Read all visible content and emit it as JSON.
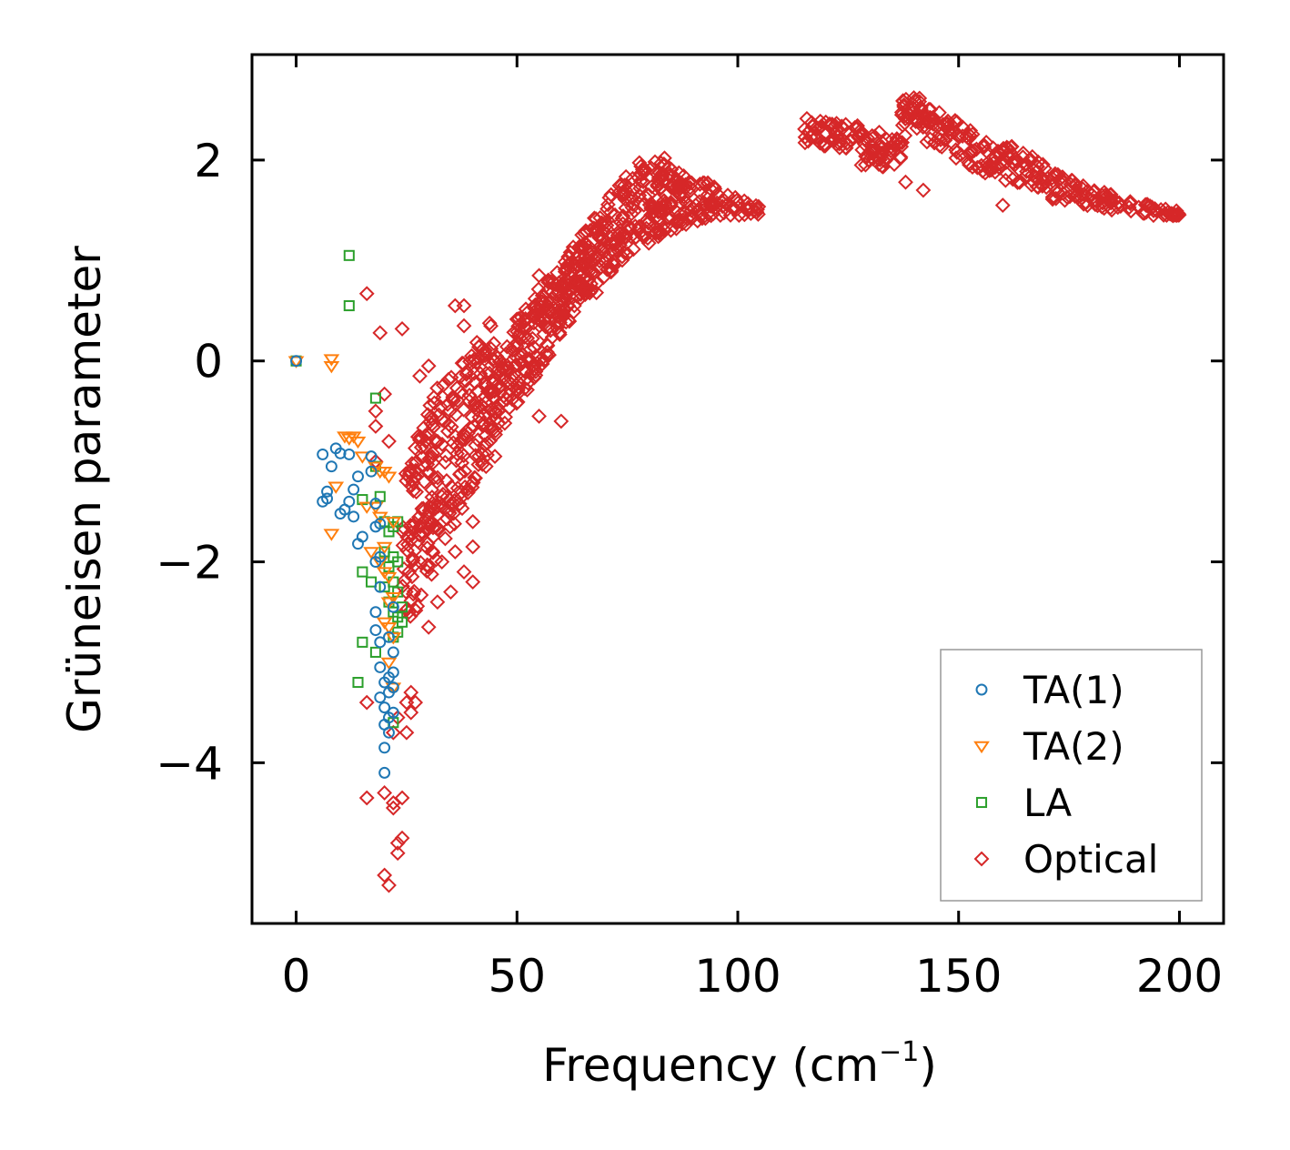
{
  "chart_data": {
    "type": "scatter",
    "title": "",
    "xlabel_main": "Frequency (cm",
    "xlabel_sup": "−1",
    "xlabel_end": ")",
    "ylabel": "Grüneisen parameter",
    "xlim": [
      -10,
      210
    ],
    "ylim": [
      -5.6,
      3.05
    ],
    "x_ticks": [
      0,
      50,
      100,
      150,
      200
    ],
    "x_tick_labels": [
      "0",
      "50",
      "100",
      "150",
      "200"
    ],
    "y_ticks": [
      -4,
      -2,
      0,
      2
    ],
    "y_tick_labels": [
      "−4",
      "−2",
      "0",
      "2"
    ],
    "legend_position": "lower-right",
    "series": [
      {
        "name": "TA(1)",
        "marker": "circle",
        "color": "#1f77b4",
        "points": [
          [
            0,
            0
          ],
          [
            6,
            -0.93
          ],
          [
            6,
            -1.4
          ],
          [
            7,
            -1.3
          ],
          [
            7,
            -1.37
          ],
          [
            8,
            -1.05
          ],
          [
            9,
            -0.87
          ],
          [
            10,
            -0.92
          ],
          [
            10,
            -1.52
          ],
          [
            11,
            -1.48
          ],
          [
            12,
            -0.93
          ],
          [
            12,
            -1.4
          ],
          [
            13,
            -1.28
          ],
          [
            13,
            -1.55
          ],
          [
            14,
            -1.15
          ],
          [
            14,
            -1.82
          ],
          [
            15,
            -1.75
          ],
          [
            17,
            -0.95
          ],
          [
            17,
            -1.1
          ],
          [
            18,
            -1.42
          ],
          [
            18,
            -1.65
          ],
          [
            18,
            -2.0
          ],
          [
            18,
            -2.5
          ],
          [
            18,
            -2.68
          ],
          [
            19,
            -1.62
          ],
          [
            19,
            -1.95
          ],
          [
            19,
            -2.25
          ],
          [
            19,
            -2.8
          ],
          [
            19,
            -3.05
          ],
          [
            19,
            -3.35
          ],
          [
            20,
            -3.2
          ],
          [
            20,
            -3.45
          ],
          [
            20,
            -3.62
          ],
          [
            20,
            -3.85
          ],
          [
            20,
            -4.1
          ],
          [
            21,
            -2.75
          ],
          [
            21,
            -3.15
          ],
          [
            21,
            -3.3
          ],
          [
            21,
            -3.55
          ],
          [
            21,
            -3.7
          ],
          [
            22,
            -2.45
          ],
          [
            22,
            -2.9
          ],
          [
            22,
            -3.1
          ],
          [
            22,
            -3.5
          ],
          [
            22,
            -3.25
          ]
        ]
      },
      {
        "name": "TA(2)",
        "marker": "triangle-down",
        "color": "#ff7f0e",
        "points": [
          [
            0,
            0
          ],
          [
            8,
            0.02
          ],
          [
            8,
            -0.05
          ],
          [
            8,
            -1.72
          ],
          [
            9,
            -1.25
          ],
          [
            11,
            -0.75
          ],
          [
            12,
            -0.77
          ],
          [
            13,
            -0.75
          ],
          [
            14,
            -0.8
          ],
          [
            15,
            -0.95
          ],
          [
            16,
            -1.45
          ],
          [
            17,
            -1.9
          ],
          [
            18,
            -1.05
          ],
          [
            18,
            -1.45
          ],
          [
            19,
            -1.1
          ],
          [
            19,
            -1.55
          ],
          [
            19,
            -2.0
          ],
          [
            20,
            -1.1
          ],
          [
            20,
            -1.85
          ],
          [
            20,
            -2.1
          ],
          [
            20,
            -2.6
          ],
          [
            21,
            -1.15
          ],
          [
            21,
            -2.15
          ],
          [
            21,
            -2.4
          ],
          [
            21,
            -2.65
          ],
          [
            21,
            -3.0
          ],
          [
            22,
            -1.6
          ],
          [
            22,
            -2.35
          ],
          [
            22,
            -2.75
          ],
          [
            22,
            -3.25
          ]
        ]
      },
      {
        "name": "LA",
        "marker": "square",
        "color": "#2ca02c",
        "points": [
          [
            0,
            0
          ],
          [
            12,
            1.05
          ],
          [
            12,
            0.55
          ],
          [
            18,
            -0.37
          ],
          [
            15,
            -1.38
          ],
          [
            15,
            -2.1
          ],
          [
            15,
            -2.8
          ],
          [
            14,
            -3.2
          ],
          [
            17,
            -2.2
          ],
          [
            18,
            -2.9
          ],
          [
            18,
            -1.05
          ],
          [
            19,
            -1.35
          ],
          [
            20,
            -1.6
          ],
          [
            20,
            -1.9
          ],
          [
            20,
            -2.25
          ],
          [
            21,
            -1.7
          ],
          [
            21,
            -2.05
          ],
          [
            21,
            -2.4
          ],
          [
            22,
            -1.65
          ],
          [
            22,
            -1.95
          ],
          [
            22,
            -2.2
          ],
          [
            22,
            -2.5
          ],
          [
            22,
            -2.75
          ],
          [
            23,
            -1.6
          ],
          [
            23,
            -2.0
          ],
          [
            23,
            -2.3
          ],
          [
            23,
            -2.55
          ],
          [
            23,
            -2.7
          ],
          [
            24,
            -2.45
          ],
          [
            24,
            -2.6
          ],
          [
            22,
            -3.6
          ]
        ]
      },
      {
        "name": "Optical",
        "marker": "diamond",
        "color": "#d62728",
        "points": [
          [
            16,
            0.67
          ],
          [
            19,
            0.28
          ],
          [
            24,
            0.32
          ],
          [
            18,
            -0.5
          ],
          [
            18,
            -0.65
          ],
          [
            18,
            -1.0
          ],
          [
            20,
            -0.33
          ],
          [
            21,
            -0.8
          ],
          [
            16,
            -3.4
          ],
          [
            16,
            -4.35
          ],
          [
            20,
            -4.3
          ],
          [
            20,
            -5.12
          ],
          [
            21,
            -5.22
          ],
          [
            22,
            -4.4
          ],
          [
            22,
            -4.45
          ],
          [
            24,
            -4.75
          ],
          [
            23,
            -4.8
          ],
          [
            24,
            -4.35
          ],
          [
            23,
            -4.9
          ],
          [
            22,
            -3.7
          ],
          [
            23,
            -3.55
          ],
          [
            25,
            -3.7
          ],
          [
            25,
            -3.4
          ],
          [
            26,
            -3.3
          ],
          [
            26,
            -3.5
          ],
          [
            27,
            -3.4
          ],
          [
            28,
            -0.15
          ],
          [
            30,
            -0.05
          ],
          [
            36,
            0.55
          ],
          [
            38,
            0.55
          ],
          [
            38,
            0.35
          ],
          [
            55,
            0.85
          ],
          [
            60,
            0.5
          ],
          [
            63,
            0.55
          ],
          [
            68,
            0.68
          ],
          [
            72,
            0.95
          ],
          [
            60,
            -0.6
          ],
          [
            55,
            -0.55
          ],
          [
            45,
            -0.95
          ],
          [
            43,
            -1.05
          ],
          [
            40,
            -1.6
          ],
          [
            36,
            -1.9
          ],
          [
            33,
            -2.0
          ],
          [
            35,
            -2.3
          ],
          [
            40,
            -1.85
          ],
          [
            38,
            -2.1
          ],
          [
            40,
            -2.2
          ],
          [
            30,
            -2.65
          ],
          [
            32,
            -2.4
          ],
          [
            30,
            -1.1
          ],
          [
            33,
            -1.35
          ],
          [
            138,
            1.78
          ],
          [
            142,
            1.7
          ],
          [
            160,
            1.55
          ],
          [
            128,
            1.95
          ],
          [
            133,
            2.0
          ],
          [
            150,
            2.25
          ]
        ]
      }
    ],
    "optical_bands": [
      {
        "x0": 24,
        "x1": 34,
        "lo0": -2.8,
        "hi0": -1.1,
        "lo1": -1.8,
        "hi1": -0.05,
        "n": 140
      },
      {
        "x0": 34,
        "x1": 45,
        "lo0": -1.8,
        "hi0": -0.2,
        "lo1": -0.8,
        "hi1": 0.45,
        "n": 140
      },
      {
        "x0": 45,
        "x1": 55,
        "lo0": -0.8,
        "hi0": 0.1,
        "lo1": -0.1,
        "hi1": 0.75,
        "n": 120
      },
      {
        "x0": 55,
        "x1": 65,
        "lo0": -0.1,
        "hi0": 0.7,
        "lo1": 0.6,
        "hi1": 1.3,
        "n": 120
      },
      {
        "x0": 65,
        "x1": 75,
        "lo0": 0.6,
        "hi0": 1.3,
        "lo1": 1.05,
        "hi1": 1.9,
        "n": 120
      },
      {
        "x0": 75,
        "x1": 85,
        "lo0": 1.05,
        "hi0": 1.95,
        "lo1": 1.3,
        "hi1": 2.05,
        "n": 110
      },
      {
        "x0": 85,
        "x1": 95,
        "lo0": 1.3,
        "hi0": 1.9,
        "lo1": 1.45,
        "hi1": 1.75,
        "n": 70
      },
      {
        "x0": 95,
        "x1": 105,
        "lo0": 1.45,
        "hi0": 1.7,
        "lo1": 1.45,
        "hi1": 1.55,
        "n": 30
      },
      {
        "x0": 115,
        "x1": 128,
        "lo0": 2.15,
        "hi0": 2.42,
        "lo1": 2.1,
        "hi1": 2.35,
        "n": 60
      },
      {
        "x0": 128,
        "x1": 137,
        "lo0": 1.9,
        "hi0": 2.3,
        "lo1": 1.95,
        "hi1": 2.25,
        "n": 50
      },
      {
        "x0": 137,
        "x1": 142,
        "lo0": 2.05,
        "hi0": 2.68,
        "lo1": 2.3,
        "hi1": 2.62,
        "n": 35
      },
      {
        "x0": 142,
        "x1": 156,
        "lo0": 2.2,
        "hi0": 2.6,
        "lo1": 1.85,
        "hi1": 2.2,
        "n": 70
      },
      {
        "x0": 156,
        "x1": 160,
        "lo0": 1.85,
        "hi0": 2.2,
        "lo1": 1.9,
        "hi1": 2.05,
        "n": 20
      },
      {
        "x0": 160,
        "x1": 170,
        "lo0": 1.8,
        "hi0": 2.2,
        "lo1": 1.7,
        "hi1": 1.95,
        "n": 50
      },
      {
        "x0": 170,
        "x1": 185,
        "lo0": 1.6,
        "hi0": 1.9,
        "lo1": 1.5,
        "hi1": 1.65,
        "n": 60
      },
      {
        "x0": 185,
        "x1": 200,
        "lo0": 1.48,
        "hi0": 1.62,
        "lo1": 1.43,
        "hi1": 1.5,
        "n": 45
      }
    ]
  }
}
